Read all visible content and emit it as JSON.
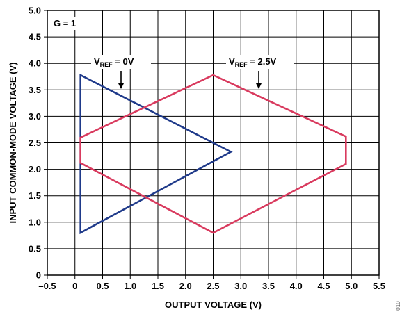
{
  "chart_data": {
    "type": "line",
    "title": "",
    "xlabel": "OUTPUT VOLTAGE (V)",
    "ylabel": "INPUT COMMON-MODE VOLTAGE (V)",
    "xlim": [
      -0.5,
      5.5
    ],
    "ylim": [
      0,
      5.0
    ],
    "x_ticks": [
      -0.5,
      0,
      0.5,
      1.0,
      1.5,
      2.0,
      2.5,
      3.0,
      3.5,
      4.0,
      4.5,
      5.0,
      5.5
    ],
    "x_tick_labels": [
      "–0.5",
      "0",
      "0.5",
      "1.0",
      "1.5",
      "2.0",
      "2.5",
      "3.0",
      "3.5",
      "4.0",
      "4.5",
      "5.0",
      "5.5"
    ],
    "y_ticks": [
      0,
      0.5,
      1.0,
      1.5,
      2.0,
      2.5,
      3.0,
      3.5,
      4.0,
      4.5,
      5.0
    ],
    "y_tick_labels": [
      "0",
      "0.5",
      "1.0",
      "1.5",
      "2.0",
      "2.5",
      "3.0",
      "3.5",
      "4.0",
      "4.5",
      "5.0"
    ],
    "grid": true,
    "gain_label": "G = 1",
    "series": [
      {
        "name": "VREF = 0V",
        "label_main": "V",
        "label_sub": "REF",
        "label_tail": " = 0V",
        "color": "#1f3a8a",
        "closed": true,
        "points": [
          [
            0.1,
            0.8
          ],
          [
            0.1,
            3.78
          ],
          [
            2.82,
            2.33
          ]
        ]
      },
      {
        "name": "VREF = 2.5V",
        "label_main": "V",
        "label_sub": "REF",
        "label_tail": " = 2.5V",
        "color": "#d93a5e",
        "closed": true,
        "points": [
          [
            0.1,
            2.12
          ],
          [
            0.1,
            2.6
          ],
          [
            2.5,
            3.78
          ],
          [
            4.9,
            2.62
          ],
          [
            4.9,
            2.1
          ],
          [
            2.5,
            0.8
          ]
        ]
      }
    ]
  },
  "figure_id": "010"
}
